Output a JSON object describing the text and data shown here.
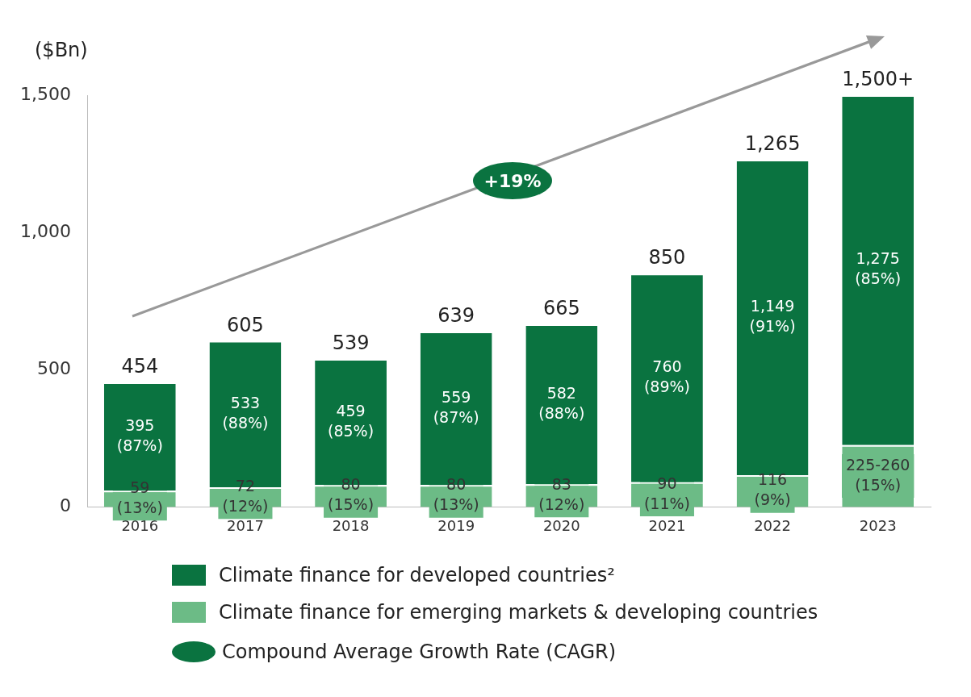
{
  "chart_data": {
    "type": "bar",
    "stacked": true,
    "ylabel": "($Bn)",
    "categories": [
      "2016",
      "2017",
      "2018",
      "2019",
      "2020",
      "2021",
      "2022",
      "2023"
    ],
    "series": [
      {
        "name": "Climate finance for emerging markets & developing countries",
        "color": "#6cbb86",
        "values": [
          59,
          72,
          80,
          80,
          83,
          90,
          116,
          225
        ],
        "value_labels": [
          "59 (13%)",
          "72 (12%)",
          "80 (15%)",
          "80 (13%)",
          "83 (12%)",
          "90 (11%)",
          "116 (9%)",
          "225-260 (15%)"
        ]
      },
      {
        "name": "Climate finance for developed countries²",
        "color": "#0a7340",
        "values": [
          395,
          533,
          459,
          559,
          582,
          760,
          1149,
          1275
        ],
        "value_labels": [
          "395 (87%)",
          "533 (88%)",
          "459 (85%)",
          "559 (87%)",
          "582 (88%)",
          "760 (89%)",
          "1,149 (91%)",
          "1,275 (85%)"
        ]
      }
    ],
    "totals": [
      "454",
      "605",
      "539",
      "639",
      "665",
      "850",
      "1,265",
      "1,500+"
    ],
    "ylim": [
      0,
      1500
    ],
    "yticks": [
      0,
      500,
      {
        "value": 1000,
        "label": "1,000"
      },
      {
        "value": 1500,
        "label": "1,500"
      }
    ],
    "grid": false,
    "legend": "bottom",
    "annotations": [
      "+19%",
      "Compound Average Growth Rate (CAGR)"
    ]
  }
}
